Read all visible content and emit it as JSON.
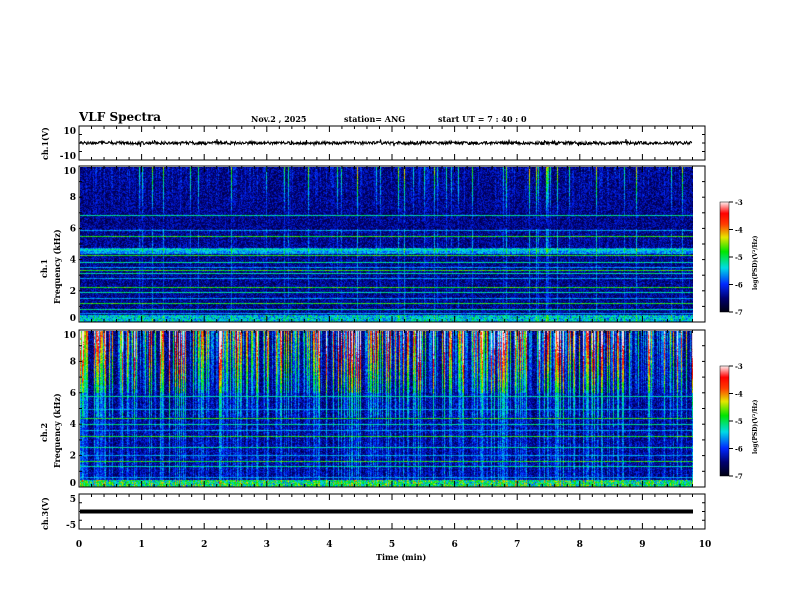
{
  "header": {
    "title": "VLF Spectra",
    "date": "Nov.2 , 2025",
    "station": "station= ANG",
    "start_ut": "start UT = 7 : 40 : 0"
  },
  "chart_data": [
    {
      "type": "line",
      "name": "ch1-waveform",
      "ylabel": "ch.1(V)",
      "ylim": [
        -10,
        10
      ],
      "ytick_labels": [
        "10",
        "-10"
      ],
      "mean_level": 0,
      "noise_amplitude": 0.8
    },
    {
      "type": "heatmap",
      "name": "ch1-spectrogram",
      "ylabel": "ch.1\nFrequency (kHz)",
      "ylabel_lines": [
        "ch.1",
        "Frequency (kHz)"
      ],
      "ylim": [
        0,
        10
      ],
      "ytick_labels": [
        "0",
        "2",
        "4",
        "6",
        "8",
        "10"
      ],
      "xlim": [
        0,
        9.8
      ],
      "colorbar": {
        "label": "log(PSD)(V²/Hz)",
        "range": [
          -7,
          -3
        ],
        "tick_labels": [
          "-3",
          "-4",
          "-5",
          "-6",
          "-7"
        ]
      },
      "narrowband_lines_khz": [
        0.5,
        0.8,
        1.2,
        1.5,
        1.9,
        2.2,
        2.8,
        3.1,
        3.3,
        3.5,
        3.8,
        4.3,
        4.6,
        4.7,
        5.5,
        5.9,
        6.9
      ],
      "activity": "low"
    },
    {
      "type": "heatmap",
      "name": "ch2-spectrogram",
      "ylabel_lines": [
        "ch.2",
        "Frequency (kHz)"
      ],
      "ylim": [
        0,
        10
      ],
      "ytick_labels": [
        "0",
        "2",
        "4",
        "6",
        "8",
        "10"
      ],
      "xlim": [
        0,
        9.8
      ],
      "colorbar": {
        "label": "log(PSD)(V²/Hz)",
        "range": [
          -7,
          -3
        ],
        "tick_labels": [
          "-3",
          "-4",
          "-5",
          "-6",
          "-7"
        ]
      },
      "narrowband_lines_khz": [
        0.6,
        1.3,
        1.6,
        2.0,
        2.5,
        3.2,
        3.6,
        4.0,
        4.4,
        5.0,
        5.8
      ],
      "activity": "high"
    },
    {
      "type": "line",
      "name": "ch3-waveform",
      "ylabel": "ch.3(V)",
      "ylim": [
        -5,
        5
      ],
      "ytick_labels": [
        "5",
        "-5"
      ],
      "mean_level": 0
    }
  ],
  "xaxis": {
    "label": "Time (min)",
    "xlim": [
      0,
      10
    ],
    "tick_labels": [
      "0",
      "1",
      "2",
      "3",
      "4",
      "5",
      "6",
      "7",
      "8",
      "9",
      "10"
    ]
  }
}
